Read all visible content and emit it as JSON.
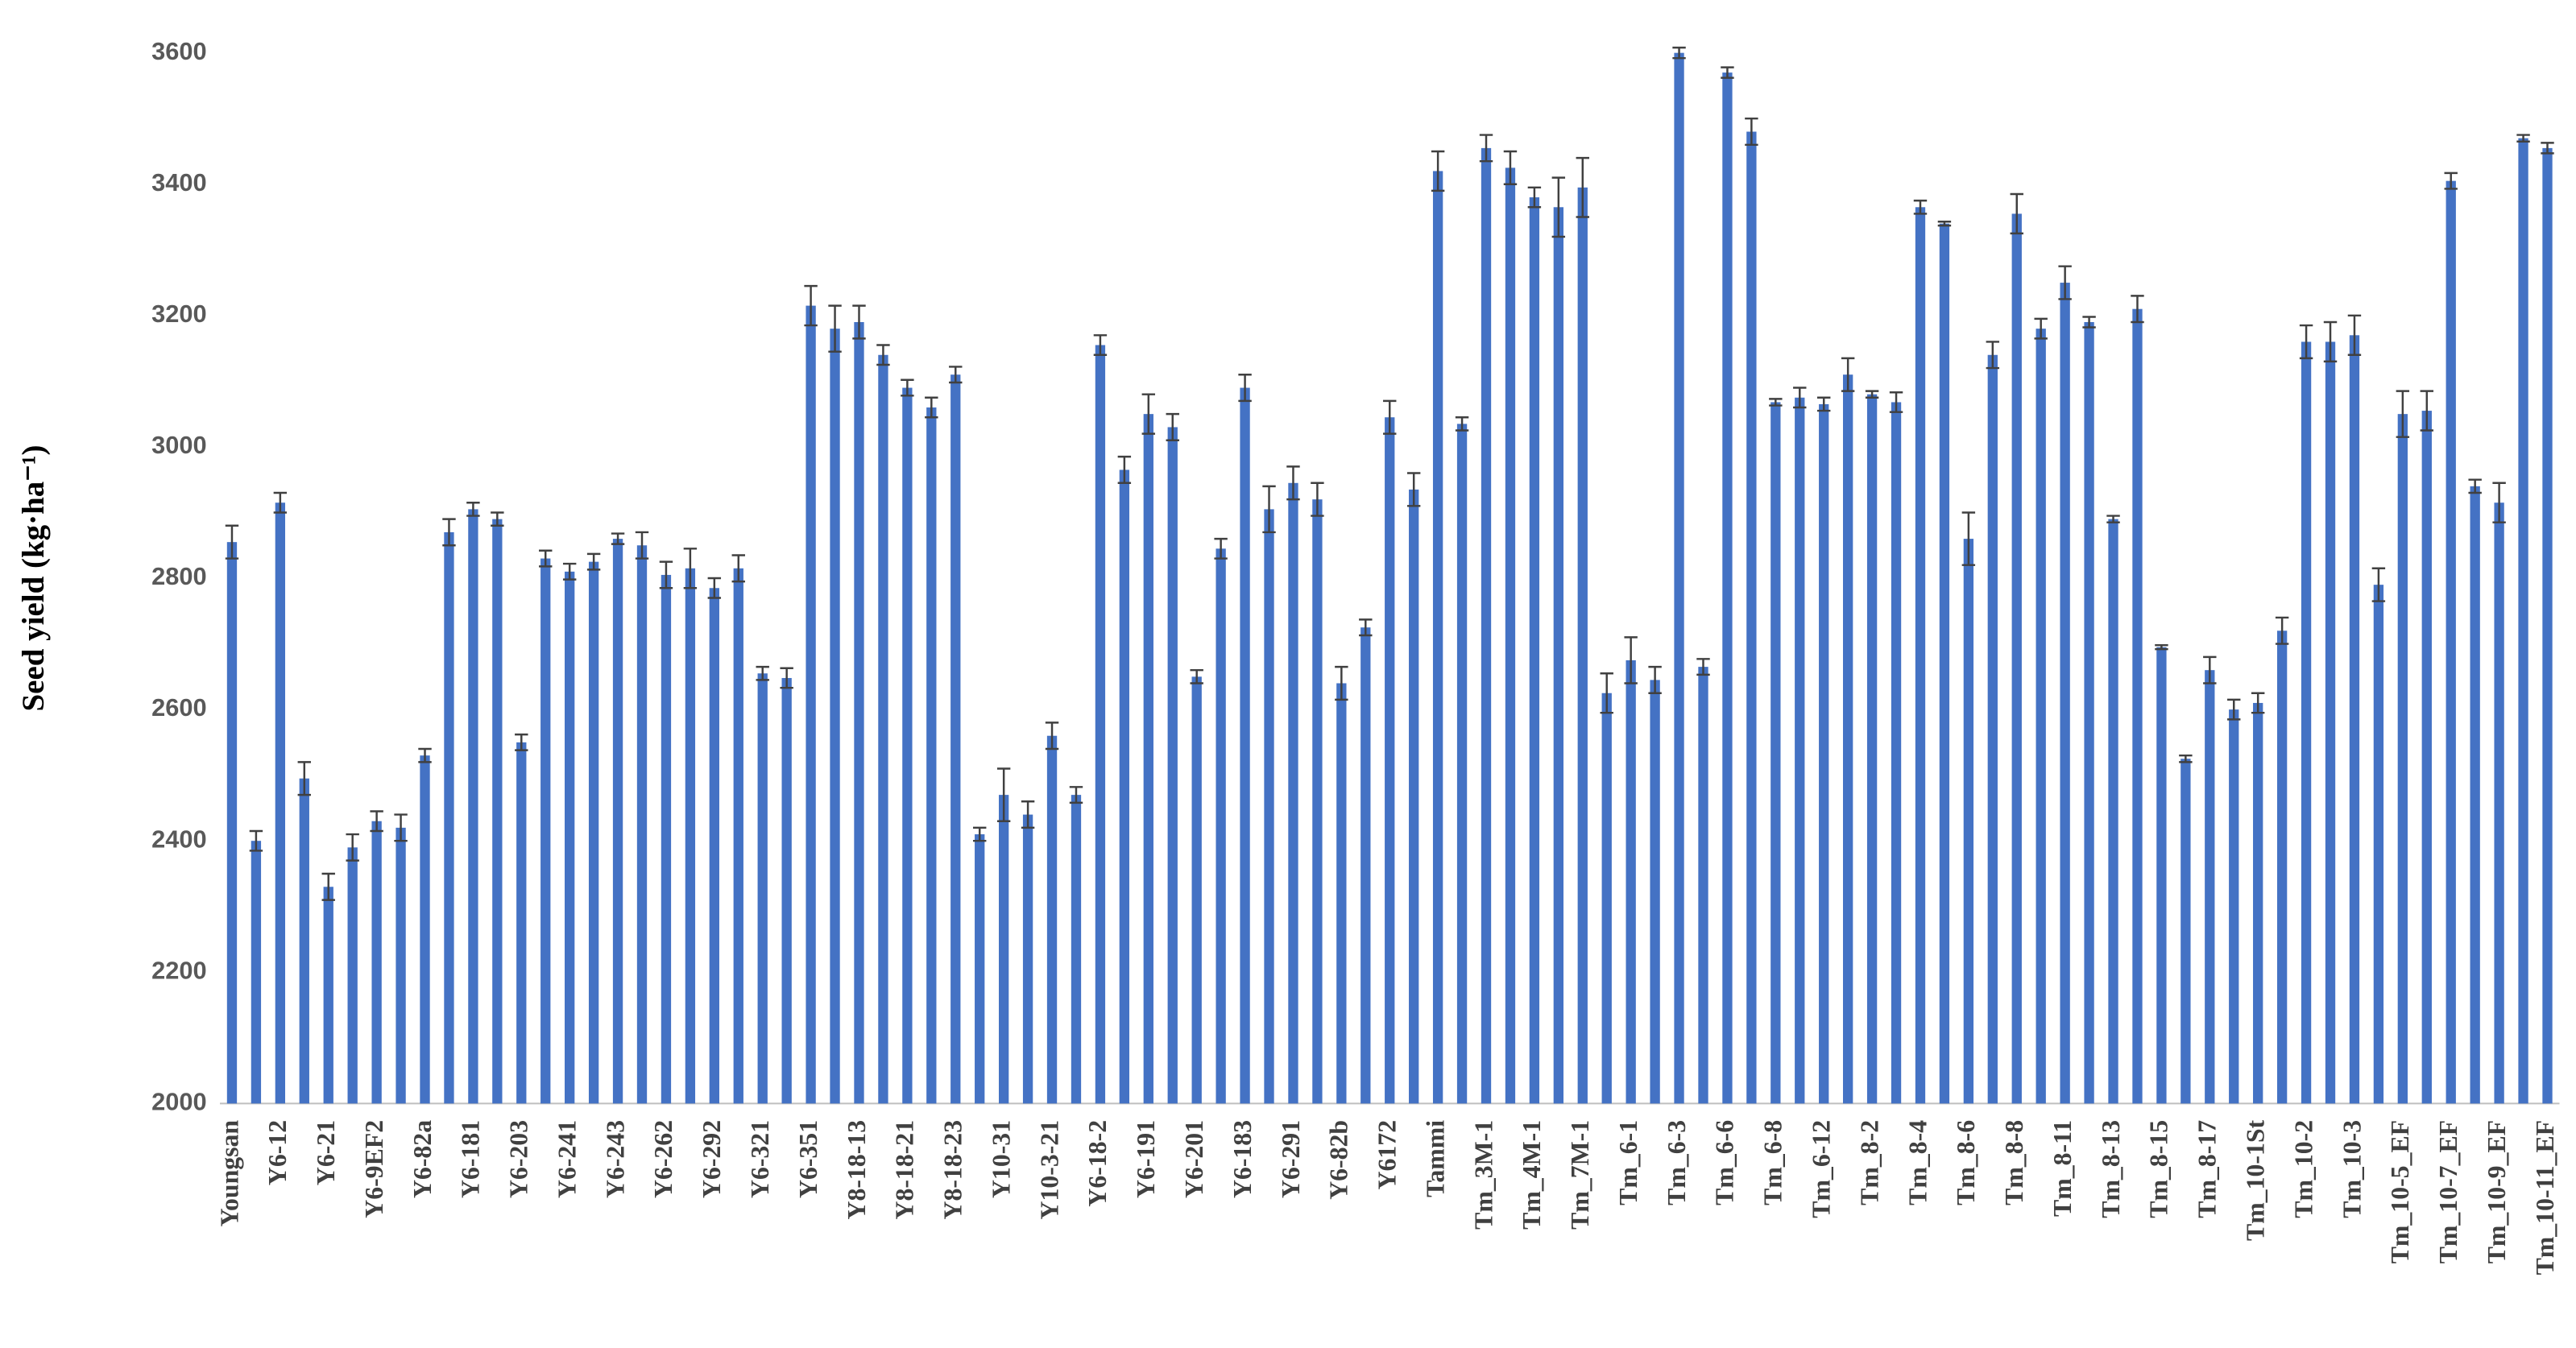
{
  "chart_data": {
    "type": "bar",
    "y_axis_label": "Seed yield (kg·ha⁻¹)",
    "categories": [
      "Youngsan",
      null,
      "Y6-12",
      null,
      "Y6-21",
      null,
      "Y6-9EF2",
      null,
      "Y6-82a",
      null,
      "Y6-181",
      null,
      "Y6-203",
      null,
      "Y6-241",
      null,
      "Y6-243",
      null,
      "Y6-262",
      null,
      "Y6-292",
      null,
      "Y6-321",
      null,
      "Y6-351",
      null,
      "Y8-18-13",
      null,
      "Y8-18-21",
      null,
      "Y8-18-23",
      null,
      "Y10-31",
      null,
      "Y10-3-21",
      null,
      "Y6-18-2",
      null,
      "Y6-191",
      null,
      "Y6-201",
      null,
      "Y6-183",
      null,
      "Y6-291",
      null,
      "Y6-82b",
      null,
      "Y6172",
      null,
      "Tammi",
      null,
      "Tm_3M-1",
      null,
      "Tm_4M-1",
      null,
      "Tm_7M-1",
      null,
      "Tm_6-1",
      null,
      "Tm_6-3",
      null,
      "Tm_6-6",
      null,
      "Tm_6-8",
      null,
      "Tm_6-12",
      null,
      "Tm_8-2",
      null,
      "Tm_8-4",
      null,
      "Tm_8-6",
      null,
      "Tm_8-8",
      null,
      "Tm_8-11",
      null,
      "Tm_8-13",
      null,
      "Tm_8-15",
      null,
      "Tm_8-17",
      null,
      "Tm_10-1St",
      null,
      "Tm_10-2",
      null,
      "Tm_10-3",
      null,
      "Tm_10-5_EF",
      null,
      "Tm_10-7_EF",
      null,
      "Tm_10-9_EF",
      null,
      "Tm_10-11_EF"
    ],
    "values": [
      2855,
      2400,
      2915,
      2495,
      2330,
      2390,
      2430,
      2420,
      2530,
      2870,
      2905,
      2890,
      2550,
      2830,
      2810,
      2825,
      2860,
      2850,
      2805,
      2815,
      2785,
      2815,
      2655,
      2648,
      3215,
      3180,
      3190,
      3140,
      3090,
      3060,
      3110,
      2410,
      2470,
      2440,
      2560,
      2470,
      3155,
      2965,
      3050,
      3030,
      2650,
      2845,
      3090,
      2905,
      2945,
      2920,
      2640,
      2725,
      3045,
      2935,
      3420,
      3035,
      3455,
      3425,
      3380,
      3365,
      3395,
      2625,
      2675,
      2645,
      3600,
      2665,
      3570,
      3480,
      3068,
      3075,
      3065,
      3110,
      3080,
      3068,
      3365,
      3340,
      2860,
      3140,
      3355,
      3180,
      3250,
      3190,
      2890,
      3210,
      2695,
      2525,
      2660,
      2600,
      2610,
      2720,
      3160,
      3160,
      3170,
      2790,
      3050,
      3055,
      3405,
      2940,
      2915,
      3470,
      3455
    ],
    "errors": [
      25,
      15,
      15,
      25,
      20,
      20,
      15,
      20,
      10,
      20,
      10,
      10,
      12,
      12,
      12,
      12,
      8,
      20,
      20,
      30,
      15,
      20,
      10,
      15,
      30,
      35,
      25,
      15,
      12,
      15,
      12,
      10,
      40,
      20,
      20,
      12,
      15,
      20,
      30,
      20,
      10,
      15,
      20,
      35,
      25,
      25,
      25,
      12,
      25,
      25,
      30,
      10,
      20,
      25,
      15,
      45,
      45,
      30,
      35,
      20,
      8,
      12,
      8,
      20,
      5,
      15,
      10,
      25,
      5,
      15,
      10,
      3,
      40,
      20,
      30,
      15,
      25,
      8,
      5,
      20,
      3,
      5,
      20,
      15,
      15,
      20,
      25,
      30,
      30,
      25,
      35,
      30,
      12,
      10,
      30,
      5,
      8
    ],
    "color": "#4472c4",
    "error_color": "#404040",
    "ylim": [
      2000,
      3600
    ],
    "yticks": [
      2000,
      2200,
      2400,
      2600,
      2800,
      3000,
      3200,
      3400,
      3600
    ],
    "grid": false
  }
}
